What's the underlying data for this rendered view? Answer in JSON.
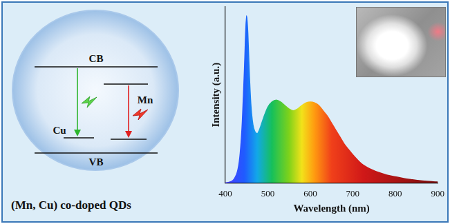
{
  "chart_data": {
    "type": "line",
    "x_label": "Wavelength (nm)",
    "y_label": "Intensity (a.u.)",
    "x": [
      400,
      410,
      420,
      430,
      435,
      440,
      445,
      450,
      453,
      456,
      460,
      465,
      470,
      475,
      480,
      490,
      500,
      510,
      520,
      530,
      540,
      550,
      560,
      570,
      580,
      590,
      600,
      610,
      620,
      630,
      640,
      650,
      660,
      670,
      680,
      690,
      700,
      720,
      740,
      760,
      780,
      800,
      820,
      840,
      860,
      880,
      900
    ],
    "values": [
      0.0,
      0.005,
      0.02,
      0.08,
      0.17,
      0.35,
      0.65,
      0.95,
      0.85,
      0.65,
      0.45,
      0.33,
      0.29,
      0.28,
      0.3,
      0.37,
      0.43,
      0.46,
      0.47,
      0.46,
      0.44,
      0.42,
      0.41,
      0.42,
      0.44,
      0.455,
      0.46,
      0.455,
      0.44,
      0.41,
      0.38,
      0.34,
      0.3,
      0.26,
      0.22,
      0.19,
      0.16,
      0.11,
      0.08,
      0.06,
      0.045,
      0.035,
      0.025,
      0.018,
      0.012,
      0.008,
      0.005
    ],
    "xlim": [
      400,
      900
    ],
    "xticks": [
      400,
      500,
      600,
      700,
      800,
      900
    ],
    "ylim": [
      0,
      1
    ],
    "tick_labels": "x",
    "grid": false
  },
  "diagram": {
    "caption": "(Mn, Cu) co-doped QDs",
    "cb": "CB",
    "vb": "VB",
    "cu": "Cu",
    "mn": "Mn"
  }
}
